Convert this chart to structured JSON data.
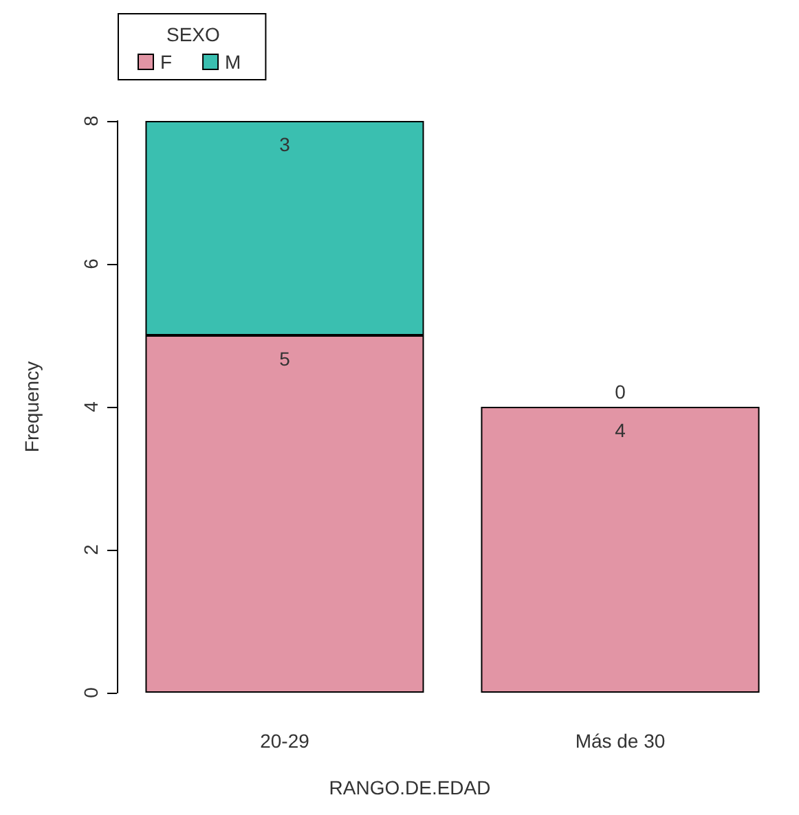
{
  "chart_data": {
    "type": "bar",
    "xlabel": "RANGO.DE.EDAD",
    "ylabel": "Frequency",
    "legend_title": "SEXO",
    "categories": [
      "20-29",
      "Más de 30"
    ],
    "stacked": true,
    "series": [
      {
        "name": "F",
        "color": "#e295a5",
        "values": [
          5,
          4
        ]
      },
      {
        "name": "M",
        "color": "#3abfb0",
        "values": [
          3,
          0
        ]
      }
    ],
    "ylim": [
      0,
      8
    ],
    "yticks": [
      0,
      2,
      4,
      6,
      8
    ],
    "grid": false,
    "legend": "top left",
    "data_labels": true
  }
}
